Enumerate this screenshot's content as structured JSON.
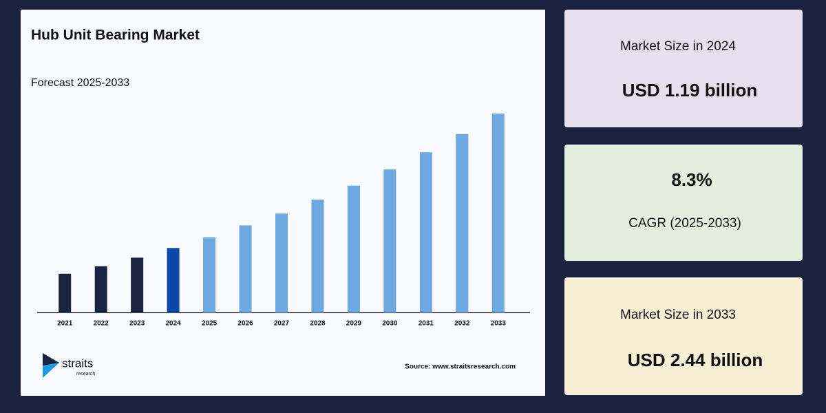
{
  "chart_data": {
    "type": "bar",
    "title": "Hub Unit Bearing Market",
    "subtitle": "Forecast 2025-2033",
    "categories": [
      "2021",
      "2022",
      "2023",
      "2024",
      "2025",
      "2026",
      "2027",
      "2028",
      "2029",
      "2030",
      "2031",
      "2032",
      "2033"
    ],
    "values": [
      0.95,
      1.02,
      1.1,
      1.19,
      1.29,
      1.4,
      1.51,
      1.64,
      1.77,
      1.92,
      2.08,
      2.25,
      2.44
    ],
    "colors": [
      "#1a2442",
      "#1a2442",
      "#1a2442",
      "#0b47a8",
      "#6fa9e2",
      "#6fa9e2",
      "#6fa9e2",
      "#6fa9e2",
      "#6fa9e2",
      "#6fa9e2",
      "#6fa9e2",
      "#6fa9e2",
      "#6fa9e2"
    ],
    "ylim": [
      0.59,
      2.6
    ],
    "source": "Source: www.straitsresearch.com"
  },
  "logo": {
    "name": "straits",
    "tagline": "research"
  },
  "cards": [
    {
      "label": "Market Size in 2024",
      "value": "USD 1.19 billion"
    },
    {
      "label": "CAGR (2025-2033)",
      "value": "8.3%"
    },
    {
      "label": "Market Size in 2033",
      "value": "USD 2.44 billion"
    }
  ]
}
